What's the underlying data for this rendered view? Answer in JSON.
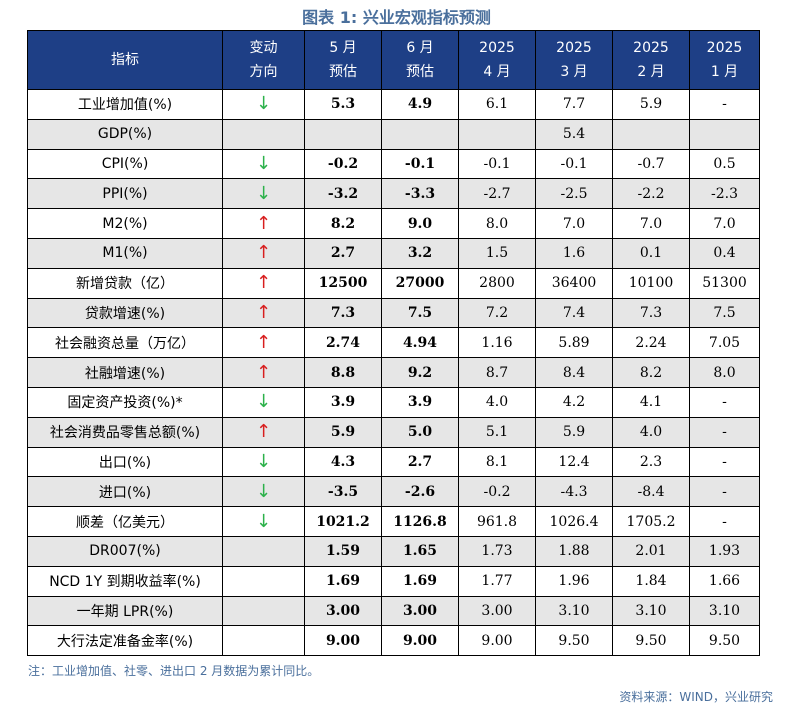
{
  "title": "图表 1:  兴业宏观指标预测",
  "headers": {
    "indicator": "指标",
    "direction": [
      "变动",
      "方向"
    ],
    "may_est": [
      "5 月",
      "预估"
    ],
    "jun_est": [
      "6 月",
      "预估"
    ],
    "apr": [
      "2025",
      "4 月"
    ],
    "mar": [
      "2025",
      "3 月"
    ],
    "feb": [
      "2025",
      "2 月"
    ],
    "jan": [
      "2025",
      "1 月"
    ]
  },
  "rows": [
    {
      "name": "工业增加值(%)",
      "dir": "↓",
      "dir_type": "down",
      "may": "5.3",
      "jun": "4.9",
      "apr": "6.1",
      "mar": "7.7",
      "feb": "5.9",
      "jan": "-"
    },
    {
      "name": "GDP(%)",
      "dir": "",
      "dir_type": "",
      "may": "",
      "jun": "",
      "apr": "",
      "mar": "5.4",
      "feb": "",
      "jan": ""
    },
    {
      "name": "CPI(%)",
      "dir": "↓",
      "dir_type": "down",
      "may": "-0.2",
      "jun": "-0.1",
      "apr": "-0.1",
      "mar": "-0.1",
      "feb": "-0.7",
      "jan": "0.5"
    },
    {
      "name": "PPI(%)",
      "dir": "↓",
      "dir_type": "down",
      "may": "-3.2",
      "jun": "-3.3",
      "apr": "-2.7",
      "mar": "-2.5",
      "feb": "-2.2",
      "jan": "-2.3"
    },
    {
      "name": "M2(%)",
      "dir": "↑",
      "dir_type": "up",
      "may": "8.2",
      "jun": "9.0",
      "apr": "8.0",
      "mar": "7.0",
      "feb": "7.0",
      "jan": "7.0"
    },
    {
      "name": "M1(%)",
      "dir": "↑",
      "dir_type": "up",
      "may": "2.7",
      "jun": "3.2",
      "apr": "1.5",
      "mar": "1.6",
      "feb": "0.1",
      "jan": "0.4"
    },
    {
      "name": "新增贷款（亿）",
      "dir": "↑",
      "dir_type": "up",
      "may": "12500",
      "jun": "27000",
      "apr": "2800",
      "mar": "36400",
      "feb": "10100",
      "jan": "51300"
    },
    {
      "name": "贷款增速(%)",
      "dir": "↑",
      "dir_type": "up",
      "may": "7.3",
      "jun": "7.5",
      "apr": "7.2",
      "mar": "7.4",
      "feb": "7.3",
      "jan": "7.5"
    },
    {
      "name": "社会融资总量（万亿）",
      "dir": "↑",
      "dir_type": "up",
      "may": "2.74",
      "jun": "4.94",
      "apr": "1.16",
      "mar": "5.89",
      "feb": "2.24",
      "jan": "7.05"
    },
    {
      "name": "社融增速(%)",
      "dir": "↑",
      "dir_type": "up",
      "may": "8.8",
      "jun": "9.2",
      "apr": "8.7",
      "mar": "8.4",
      "feb": "8.2",
      "jan": "8.0"
    },
    {
      "name": "固定资产投资(%)*",
      "dir": "↓",
      "dir_type": "down",
      "may": "3.9",
      "jun": "3.9",
      "apr": "4.0",
      "mar": "4.2",
      "feb": "4.1",
      "jan": "-"
    },
    {
      "name": "社会消费品零售总额(%)",
      "dir": "↑",
      "dir_type": "up",
      "may": "5.9",
      "jun": "5.0",
      "apr": "5.1",
      "mar": "5.9",
      "feb": "4.0",
      "jan": "-"
    },
    {
      "name": "出口(%)",
      "dir": "↓",
      "dir_type": "down",
      "may": "4.3",
      "jun": "2.7",
      "apr": "8.1",
      "mar": "12.4",
      "feb": "2.3",
      "jan": "-"
    },
    {
      "name": "进口(%)",
      "dir": "↓",
      "dir_type": "down",
      "may": "-3.5",
      "jun": "-2.6",
      "apr": "-0.2",
      "mar": "-4.3",
      "feb": "-8.4",
      "jan": "-"
    },
    {
      "name": "顺差（亿美元）",
      "dir": "↓",
      "dir_type": "down",
      "may": "1021.2",
      "jun": "1126.8",
      "apr": "961.8",
      "mar": "1026.4",
      "feb": "1705.2",
      "jan": "-"
    },
    {
      "name": "DR007(%)",
      "dir": "",
      "dir_type": "",
      "may": "1.59",
      "jun": "1.65",
      "apr": "1.73",
      "mar": "1.88",
      "feb": "2.01",
      "jan": "1.93"
    },
    {
      "name": "NCD 1Y 到期收益率(%)",
      "dir": "",
      "dir_type": "",
      "may": "1.69",
      "jun": "1.69",
      "apr": "1.77",
      "mar": "1.96",
      "feb": "1.84",
      "jan": "1.66"
    },
    {
      "name": "一年期 LPR(%)",
      "dir": "",
      "dir_type": "",
      "may": "3.00",
      "jun": "3.00",
      "apr": "3.00",
      "mar": "3.10",
      "feb": "3.10",
      "jan": "3.10"
    },
    {
      "name": "大行法定准备金率(%)",
      "dir": "",
      "dir_type": "",
      "may": "9.00",
      "jun": "9.00",
      "apr": "9.00",
      "mar": "9.50",
      "feb": "9.50",
      "jan": "9.50"
    }
  ],
  "note": "注：工业增加值、社零、进出口 2 月数据为累计同比。",
  "source": "资料来源：WIND，兴业研究",
  "colors": {
    "header_bg": "#1e3f86",
    "up": "#d81e1e",
    "down": "#2bb14a",
    "accent": "#4a6f9c"
  }
}
